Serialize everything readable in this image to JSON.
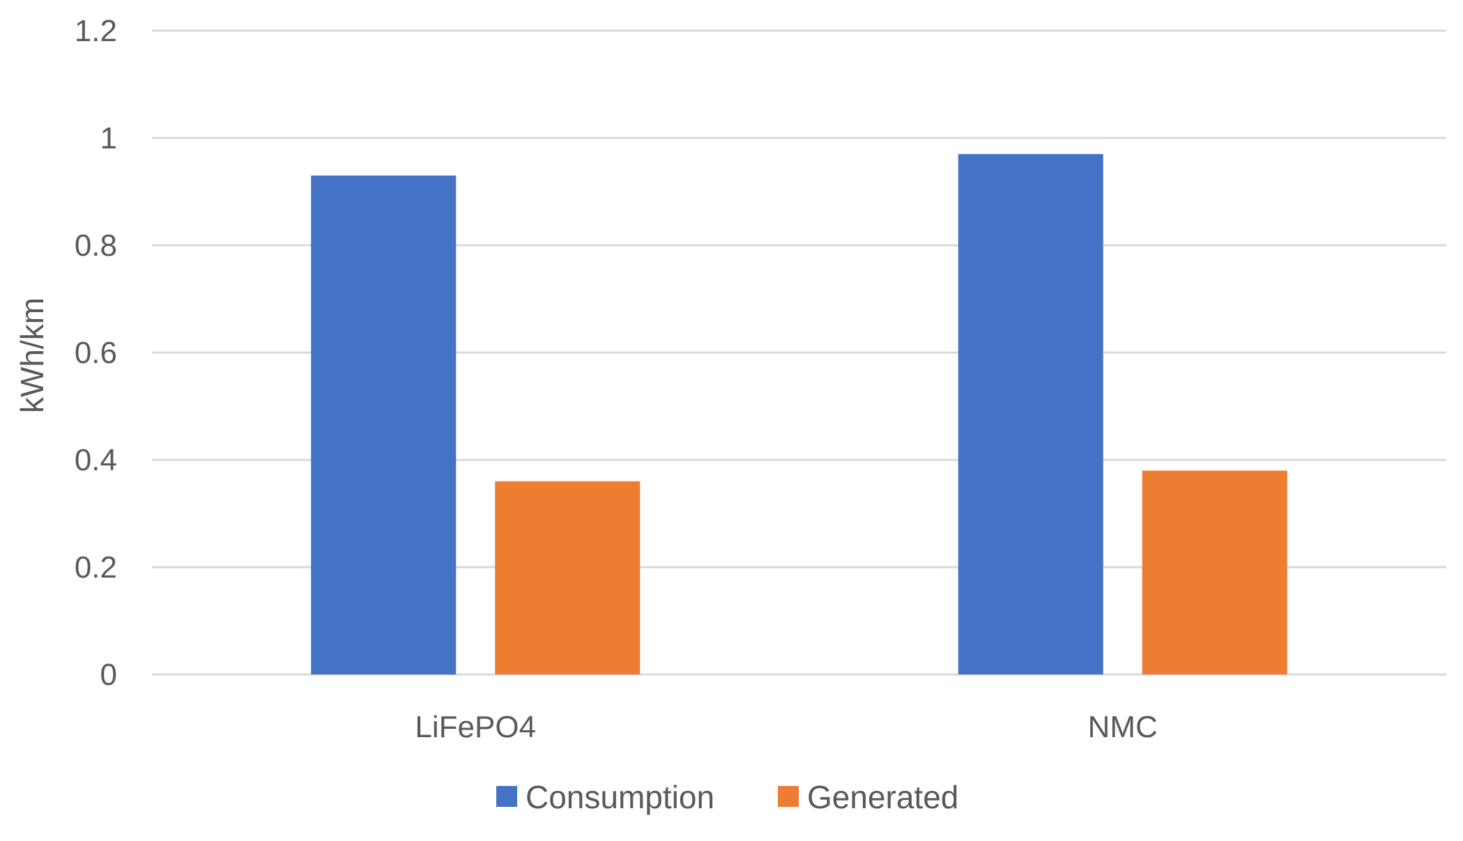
{
  "chart_data": {
    "type": "bar",
    "title": "",
    "xlabel": "",
    "ylabel": "kWh/km",
    "categories": [
      "LiFePO4",
      "NMC"
    ],
    "series": [
      {
        "name": "Consumption",
        "values": [
          0.93,
          0.97
        ],
        "color": "#4472c4"
      },
      {
        "name": "Generated",
        "values": [
          0.36,
          0.38
        ],
        "color": "#ed7d31"
      }
    ],
    "ylim": [
      0,
      1.2
    ],
    "yticks": [
      "0",
      "0.2",
      "0.4",
      "0.6",
      "0.8",
      "1",
      "1.2"
    ],
    "grid": true,
    "legend": "bottom"
  }
}
